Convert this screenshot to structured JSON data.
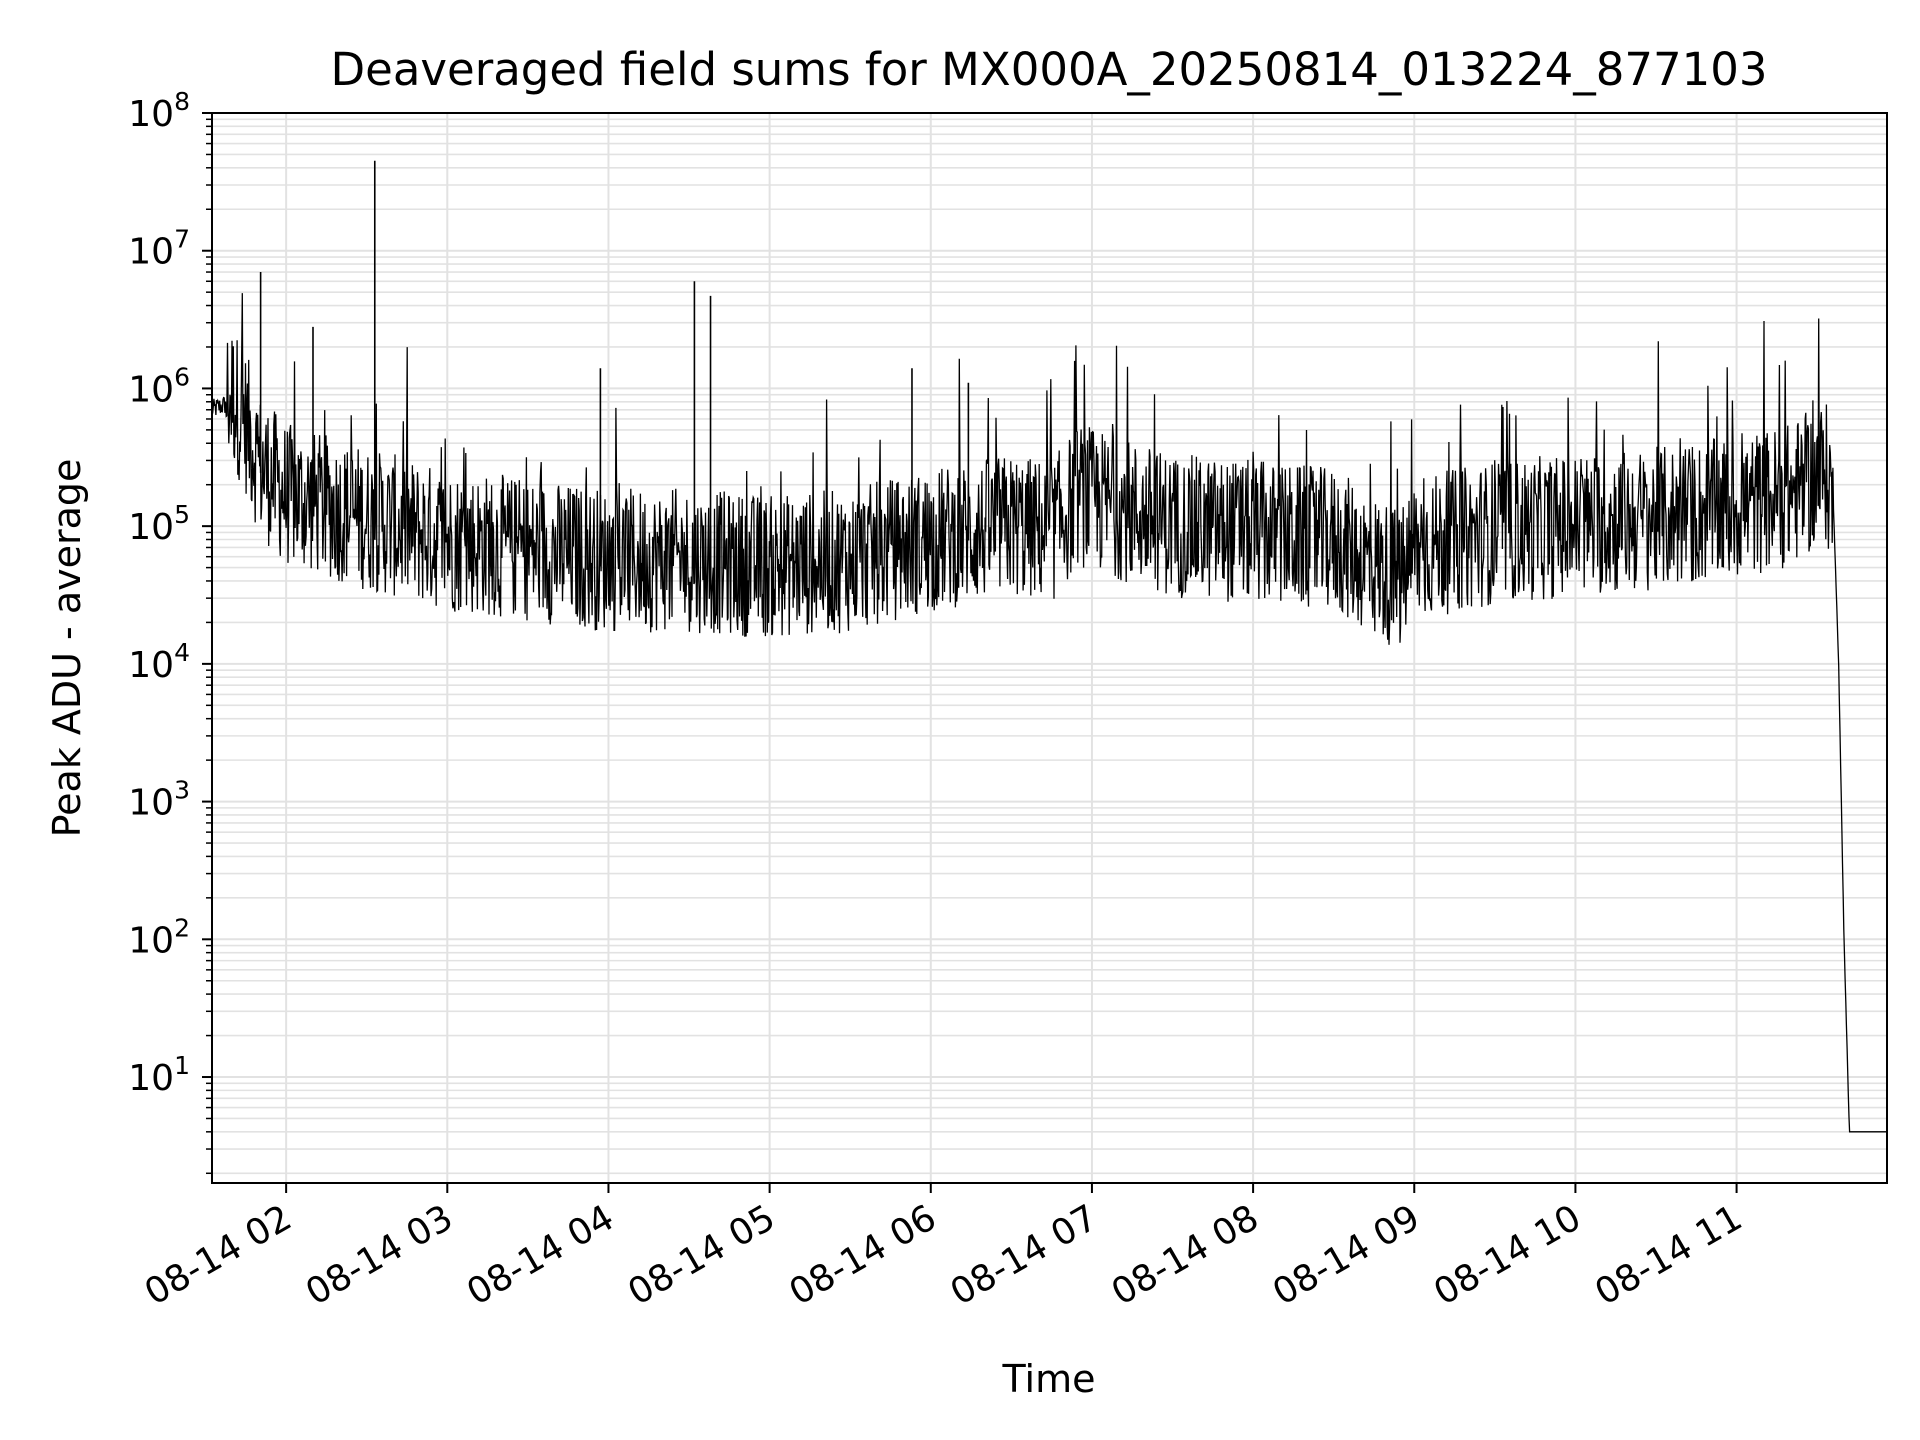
{
  "chart_data": {
    "type": "line",
    "title": "Deaveraged field sums for MX000A_20250814_013224_877103",
    "xlabel": "Time",
    "ylabel": "Peak ADU - average",
    "y_scale": "log",
    "ylim": [
      1.7,
      100000000
    ],
    "xlim": [
      "2025-08-14 01:32:24",
      "2025-08-14 11:56:00"
    ],
    "grid": true,
    "line_color": "#000000",
    "grid_color": "#e2e2e2",
    "x_tick_labels": [
      "08-14 02",
      "08-14 03",
      "08-14 04",
      "08-14 05",
      "08-14 06",
      "08-14 07",
      "08-14 08",
      "08-14 09",
      "08-14 10",
      "08-14 11"
    ],
    "y_tick_labels": [
      {
        "base": "10",
        "exp": "1"
      },
      {
        "base": "10",
        "exp": "2"
      },
      {
        "base": "10",
        "exp": "3"
      },
      {
        "base": "10",
        "exp": "4"
      },
      {
        "base": "10",
        "exp": "5"
      },
      {
        "base": "10",
        "exp": "6"
      },
      {
        "base": "10",
        "exp": "7"
      },
      {
        "base": "10",
        "exp": "8"
      }
    ],
    "series": [
      {
        "x": [
          "2025-08-14 01:32:24",
          "2025-08-14 01:40:00",
          "2025-08-14 01:45:00",
          "2025-08-14 01:50:00",
          "2025-08-14 02:00:00",
          "2025-08-14 02:30:00",
          "2025-08-14 03:00:00",
          "2025-08-14 03:30:00",
          "2025-08-14 04:00:00",
          "2025-08-14 04:30:00",
          "2025-08-14 05:00:00",
          "2025-08-14 05:30:00",
          "2025-08-14 06:00:00",
          "2025-08-14 06:30:00",
          "2025-08-14 06:45:00",
          "2025-08-14 06:55:00",
          "2025-08-14 07:30:00",
          "2025-08-14 08:00:00",
          "2025-08-14 08:30:00",
          "2025-08-14 08:55:00",
          "2025-08-14 09:00:00",
          "2025-08-14 09:30:00",
          "2025-08-14 10:00:00",
          "2025-08-14 10:30:00",
          "2025-08-14 11:00:00",
          "2025-08-14 11:20:00",
          "2025-08-14 11:30:00",
          "2025-08-14 11:33:00",
          "2025-08-14 11:36:00",
          "2025-08-14 11:38:00",
          "2025-08-14 11:40:00",
          "2025-08-14 11:42:00",
          "2025-08-14 11:56:00"
        ],
        "y": [
          700000,
          800000,
          500000,
          250000,
          150000,
          100000,
          70000,
          60000,
          50000,
          50000,
          45000,
          50000,
          70000,
          90000,
          80000,
          150000,
          90000,
          80000,
          70000,
          35000,
          60000,
          80000,
          90000,
          100000,
          120000,
          150000,
          200000,
          220000,
          150000,
          10000,
          100,
          4,
          4
        ],
        "spikes": [
          {
            "x": "2025-08-14 01:50:30",
            "y": 7000000
          },
          {
            "x": "2025-08-14 02:33:00",
            "y": 45000000
          },
          {
            "x": "2025-08-14 04:32:00",
            "y": 6000000
          },
          {
            "x": "2025-08-14 04:38:00",
            "y": 4700000
          },
          {
            "x": "2025-08-14 03:57:00",
            "y": 1400000
          },
          {
            "x": "2025-08-14 05:53:00",
            "y": 1400000
          },
          {
            "x": "2025-08-14 06:14:00",
            "y": 1100000
          },
          {
            "x": "2025-08-14 02:10:00",
            "y": 2800000
          }
        ]
      }
    ]
  }
}
